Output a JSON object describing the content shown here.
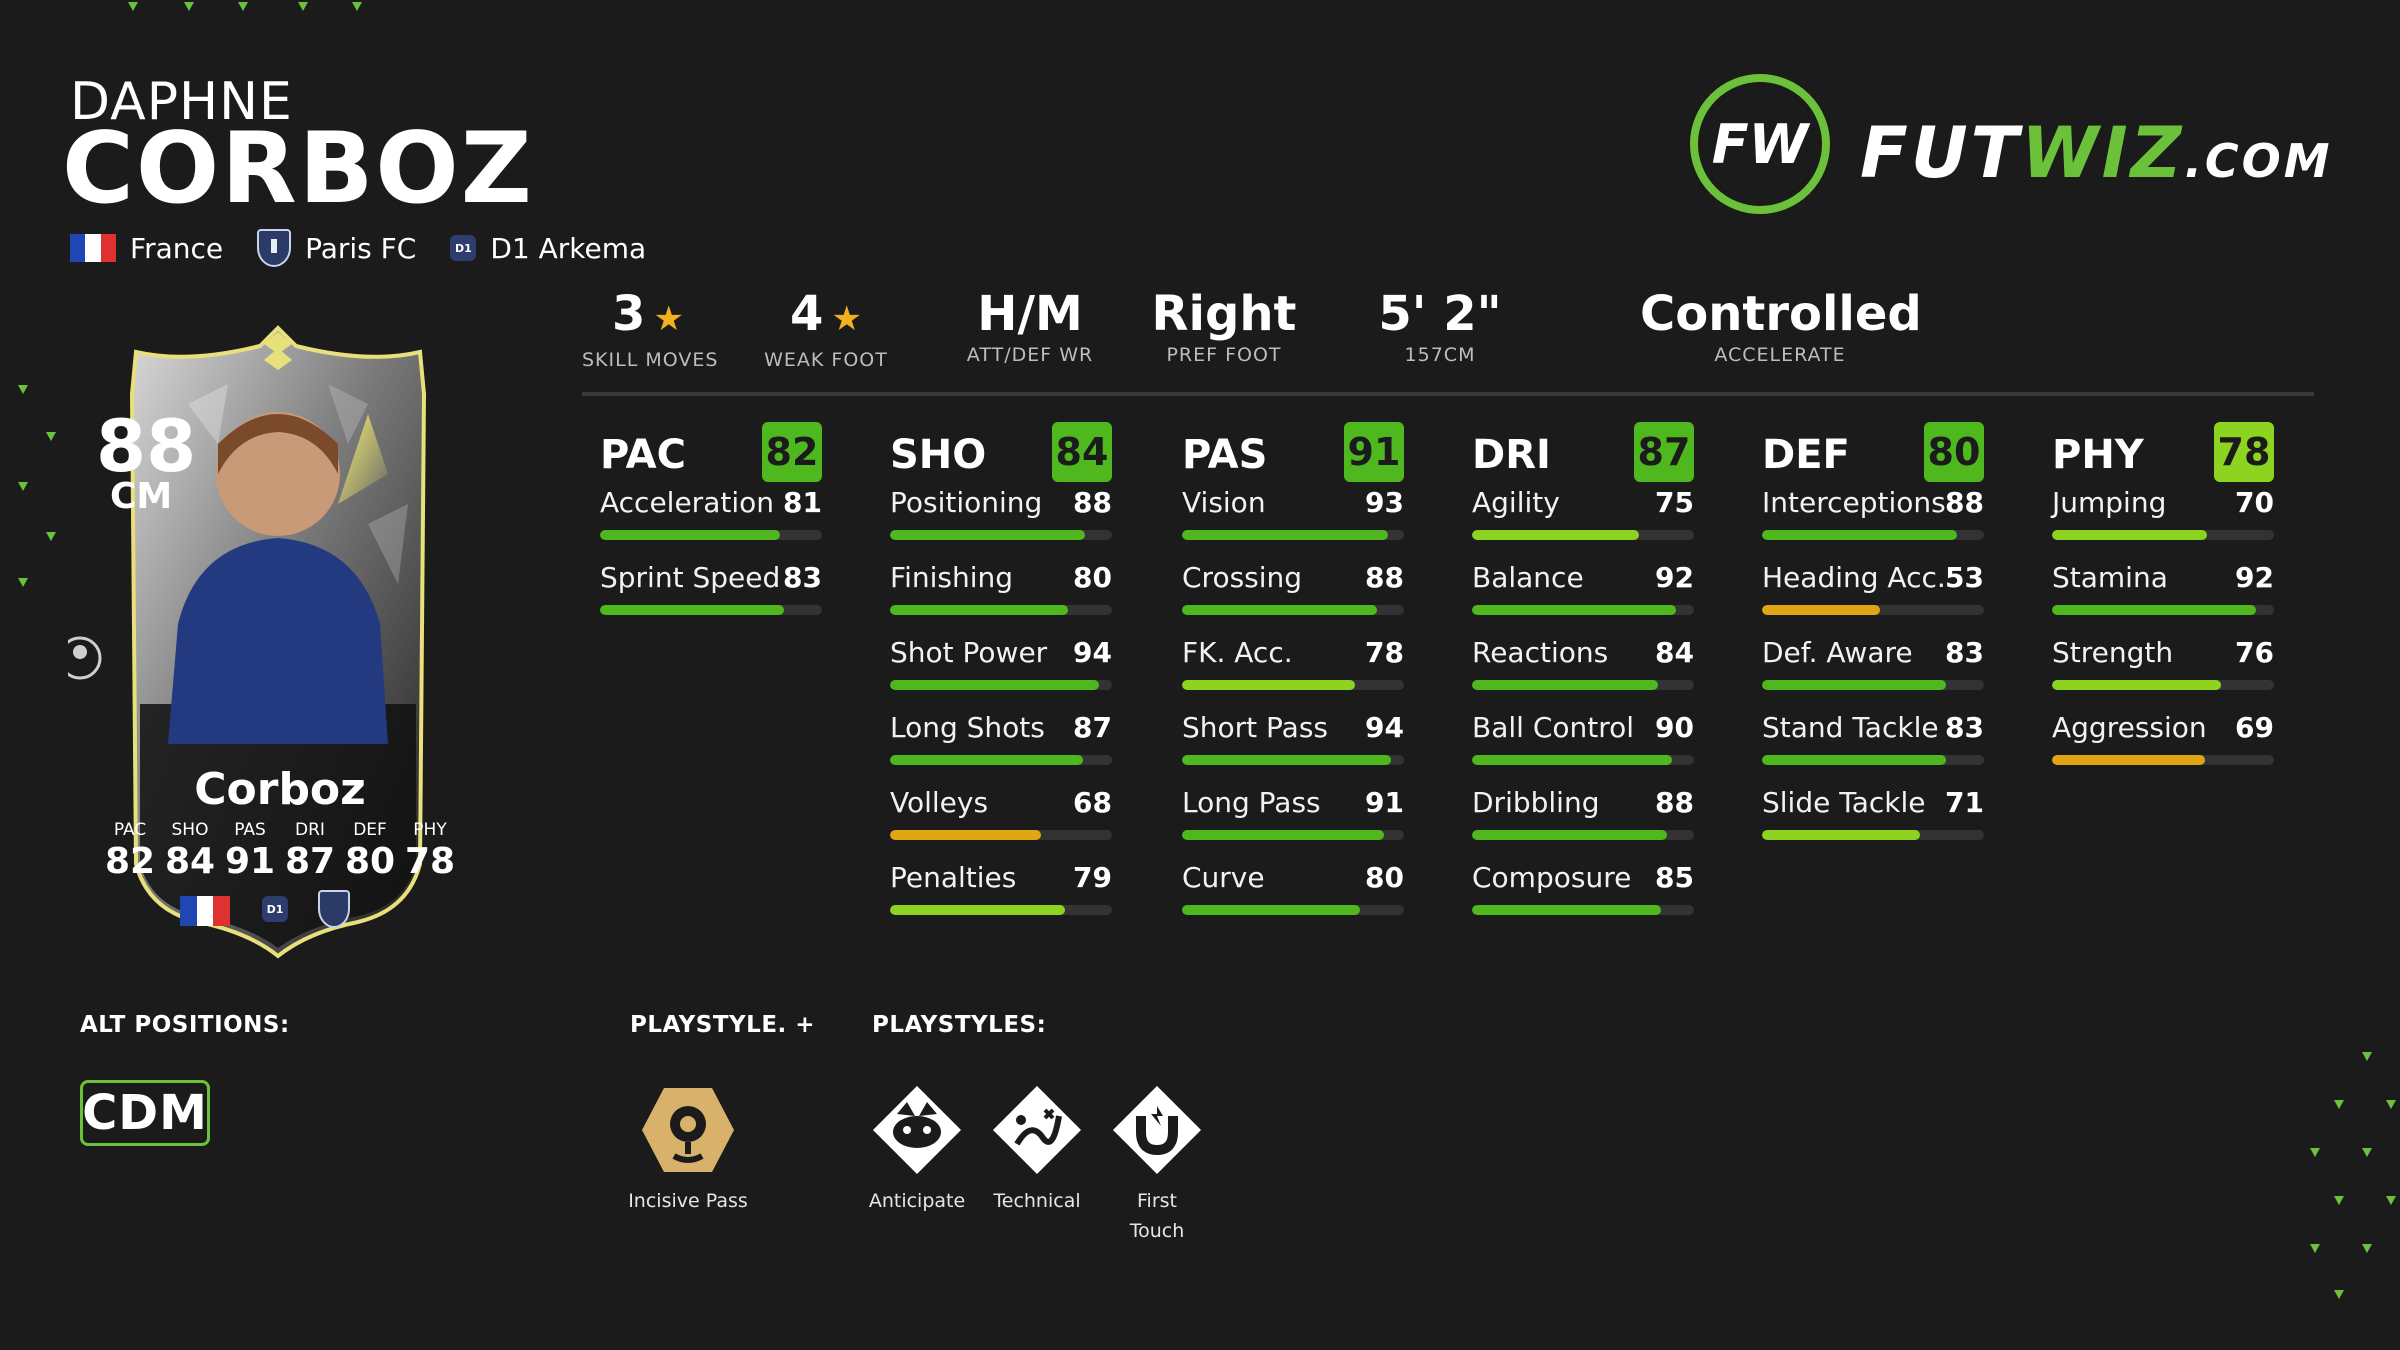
{
  "player": {
    "first_name": "DAPHNE",
    "last_name": "CORBOZ",
    "nation": "France",
    "club": "Paris FC",
    "league": "D1 Arkema",
    "league_badge_text": "D1"
  },
  "logo": {
    "mark": "FW",
    "text_part1": "FUT",
    "text_part2": "WIZ",
    "text_part3": ".COM"
  },
  "top_stats": [
    {
      "value": "3",
      "label": "SKILL MOVES",
      "star": true
    },
    {
      "value": "4",
      "label": "WEAK FOOT",
      "star": true
    },
    {
      "value": "H/M",
      "label": "ATT/DEF WR",
      "star": false
    },
    {
      "value": "Right",
      "label": "PREF FOOT",
      "star": false
    },
    {
      "value": "5' 2\"",
      "label": "157CM",
      "star": false
    },
    {
      "value": "Controlled",
      "label": "ACCELERATE",
      "star": false
    }
  ],
  "categories": [
    {
      "name": "PAC",
      "rating": "82",
      "stats": [
        {
          "label": "Acceleration",
          "value": "81"
        },
        {
          "label": "Sprint Speed",
          "value": "83"
        }
      ]
    },
    {
      "name": "SHO",
      "rating": "84",
      "stats": [
        {
          "label": "Positioning",
          "value": "88"
        },
        {
          "label": "Finishing",
          "value": "80"
        },
        {
          "label": "Shot Power",
          "value": "94"
        },
        {
          "label": "Long Shots",
          "value": "87"
        },
        {
          "label": "Volleys",
          "value": "68"
        },
        {
          "label": "Penalties",
          "value": "79"
        }
      ]
    },
    {
      "name": "PAS",
      "rating": "91",
      "stats": [
        {
          "label": "Vision",
          "value": "93"
        },
        {
          "label": "Crossing",
          "value": "88"
        },
        {
          "label": "FK. Acc.",
          "value": "78"
        },
        {
          "label": "Short Pass",
          "value": "94"
        },
        {
          "label": "Long Pass",
          "value": "91"
        },
        {
          "label": "Curve",
          "value": "80"
        }
      ]
    },
    {
      "name": "DRI",
      "rating": "87",
      "stats": [
        {
          "label": "Agility",
          "value": "75"
        },
        {
          "label": "Balance",
          "value": "92"
        },
        {
          "label": "Reactions",
          "value": "84"
        },
        {
          "label": "Ball Control",
          "value": "90"
        },
        {
          "label": "Dribbling",
          "value": "88"
        },
        {
          "label": "Composure",
          "value": "85"
        }
      ]
    },
    {
      "name": "DEF",
      "rating": "80",
      "stats": [
        {
          "label": "Interceptions",
          "value": "88"
        },
        {
          "label": "Heading Acc.",
          "value": "53"
        },
        {
          "label": "Def. Aware",
          "value": "83"
        },
        {
          "label": "Stand Tackle",
          "value": "83"
        },
        {
          "label": "Slide Tackle",
          "value": "71"
        }
      ]
    },
    {
      "name": "PHY",
      "rating": "78",
      "stats": [
        {
          "label": "Jumping",
          "value": "70"
        },
        {
          "label": "Stamina",
          "value": "92"
        },
        {
          "label": "Strength",
          "value": "76"
        },
        {
          "label": "Aggression",
          "value": "69"
        }
      ]
    }
  ],
  "card": {
    "rating": "88",
    "position": "CM",
    "name": "Corboz",
    "stats": [
      {
        "label": "PAC",
        "value": "82"
      },
      {
        "label": "SHO",
        "value": "84"
      },
      {
        "label": "PAS",
        "value": "91"
      },
      {
        "label": "DRI",
        "value": "87"
      },
      {
        "label": "DEF",
        "value": "80"
      },
      {
        "label": "PHY",
        "value": "78"
      }
    ]
  },
  "alt_positions": {
    "label": "ALT POSITIONS:",
    "value": "CDM"
  },
  "playstyle_plus": {
    "label": "PLAYSTYLE. +",
    "items": [
      {
        "name": "Incisive Pass",
        "icon": "incisive-pass-icon"
      }
    ]
  },
  "playstyles": {
    "label": "PLAYSTYLES:",
    "items": [
      {
        "name": "Anticipate",
        "icon": "raccoon-icon"
      },
      {
        "name": "Technical",
        "icon": "technical-icon"
      },
      {
        "name": "First\nTouch",
        "icon": "magnet-icon"
      }
    ]
  },
  "colors": {
    "accent": "#6cc13a",
    "high": "#4fb81f",
    "mid": "#8dd420",
    "low": "#e0a513",
    "background": "#1b1b1b",
    "star": "#f2b01e"
  }
}
